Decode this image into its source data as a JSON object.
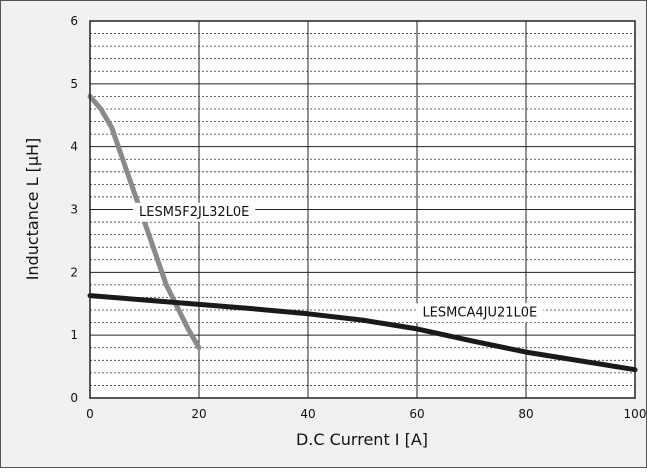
{
  "chart_data": {
    "type": "line",
    "title": "",
    "xlabel": "D.C Current I [A]",
    "ylabel": "Inductance L  [μH]",
    "xlim": [
      0,
      100
    ],
    "ylim": [
      0,
      6
    ],
    "x_ticks": [
      "0",
      "20",
      "40",
      "60",
      "80",
      "100"
    ],
    "y_ticks": [
      "0",
      "1",
      "2",
      "3",
      "4",
      "5",
      "6"
    ],
    "grid": true,
    "legend": "none",
    "series": [
      {
        "name": "LESM5F2JL32L0E",
        "color": "#8a8a8a",
        "x": [
          0,
          2,
          4,
          6,
          8,
          10,
          12,
          14,
          16,
          18,
          20
        ],
        "y": [
          4.8,
          4.6,
          4.3,
          3.8,
          3.3,
          2.8,
          2.3,
          1.8,
          1.45,
          1.1,
          0.8
        ]
      },
      {
        "name": "LESMCA4JU21L0E",
        "color": "#1a1a1a",
        "x": [
          0,
          10,
          20,
          30,
          40,
          50,
          60,
          70,
          80,
          90,
          100
        ],
        "y": [
          1.63,
          1.56,
          1.49,
          1.42,
          1.34,
          1.24,
          1.1,
          0.91,
          0.73,
          0.59,
          0.45
        ]
      }
    ]
  }
}
